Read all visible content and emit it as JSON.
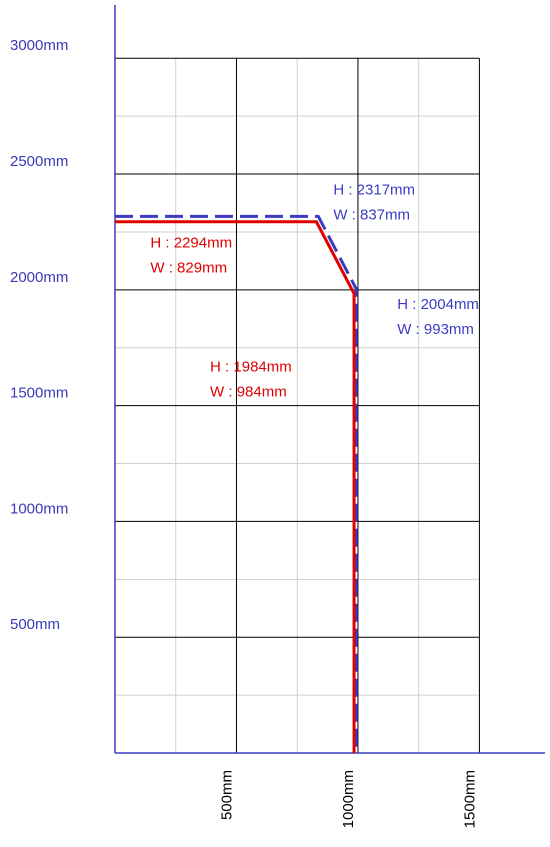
{
  "chart_data": {
    "type": "line",
    "xlim": [
      0,
      1770
    ],
    "ylim": [
      0,
      3230
    ],
    "xticks": [
      {
        "value": 500,
        "label": "500mm"
      },
      {
        "value": 1000,
        "label": "1000mm"
      },
      {
        "value": 1500,
        "label": "1500mm"
      }
    ],
    "yticks": [
      {
        "value": 500,
        "label": "500mm"
      },
      {
        "value": 1000,
        "label": "1000mm"
      },
      {
        "value": 1500,
        "label": "1500mm"
      },
      {
        "value": 2000,
        "label": "2000mm"
      },
      {
        "value": 2500,
        "label": "2500mm"
      },
      {
        "value": 3000,
        "label": "3000mm"
      }
    ],
    "minor_xticks": [
      250,
      750,
      1250
    ],
    "minor_yticks": [
      250,
      750,
      1250,
      1750,
      2250,
      2750
    ],
    "grid": true,
    "axis_color": "#3b3bc4",
    "tick_label_color": "#3a3ab8",
    "series": [
      {
        "color": "#3b3bc4",
        "dashed": true,
        "x": [
          0,
          837,
          993,
          993
        ],
        "values": [
          2317,
          2317,
          2004,
          0
        ],
        "point_labels": [
          null,
          [
            "H : 2317mm",
            "W : 837mm"
          ],
          [
            "H : 2004mm",
            "W : 993mm"
          ],
          null
        ]
      },
      {
        "color": "#e00000",
        "dashed": false,
        "x": [
          0,
          829,
          984,
          984
        ],
        "values": [
          2294,
          2294,
          1984,
          0
        ],
        "point_labels": [
          null,
          [
            "H : 2294mm",
            "W : 829mm"
          ],
          [
            "H : 1984mm",
            "W : 984mm"
          ],
          null
        ]
      }
    ]
  }
}
